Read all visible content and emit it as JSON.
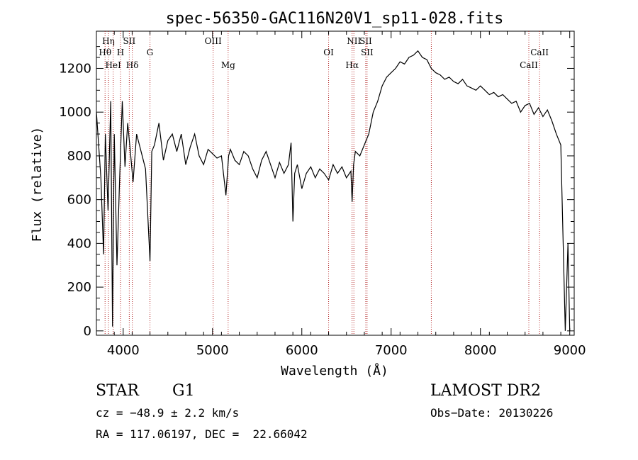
{
  "chart_data": {
    "type": "line",
    "title": "spec-56350-GAC116N20V1_sp11-028.fits",
    "xlabel": "Wavelength (Å)",
    "ylabel": "Flux (relative)",
    "xlim": [
      3700,
      9050
    ],
    "ylim": [
      -20,
      1370
    ],
    "xticks": [
      4000,
      5000,
      6000,
      7000,
      8000,
      9000
    ],
    "yticks": [
      0,
      200,
      400,
      600,
      800,
      1000,
      1200
    ],
    "grid": false,
    "line_color": "#000000",
    "marker_color": "#b22222",
    "series": [
      {
        "x": [
          3700,
          3750,
          3780,
          3800,
          3830,
          3860,
          3880,
          3900,
          3930,
          3960,
          3990,
          4020,
          4050,
          4080,
          4110,
          4150,
          4200,
          4250,
          4300,
          4320,
          4350,
          4400,
          4450,
          4500,
          4550,
          4600,
          4650,
          4700,
          4750,
          4800,
          4850,
          4900,
          4950,
          5000,
          5050,
          5100,
          5150,
          5180,
          5200,
          5250,
          5300,
          5350,
          5400,
          5450,
          5500,
          5550,
          5600,
          5650,
          5700,
          5750,
          5800,
          5850,
          5880,
          5900,
          5920,
          5950,
          6000,
          6050,
          6100,
          6150,
          6200,
          6250,
          6300,
          6350,
          6400,
          6450,
          6500,
          6550,
          6563,
          6580,
          6600,
          6650,
          6700,
          6750,
          6800,
          6850,
          6900,
          6950,
          7000,
          7050,
          7100,
          7150,
          7200,
          7250,
          7300,
          7350,
          7400,
          7450,
          7500,
          7550,
          7600,
          7650,
          7700,
          7750,
          7800,
          7850,
          7900,
          7950,
          8000,
          8050,
          8100,
          8150,
          8200,
          8250,
          8300,
          8350,
          8400,
          8450,
          8500,
          8550,
          8600,
          8650,
          8700,
          8750,
          8800,
          8850,
          8900,
          8950,
          8980,
          9000
        ],
        "y": [
          1000,
          700,
          350,
          900,
          550,
          1050,
          20,
          900,
          300,
          700,
          1050,
          750,
          950,
          820,
          680,
          900,
          820,
          740,
          320,
          820,
          850,
          950,
          780,
          870,
          900,
          820,
          900,
          760,
          840,
          900,
          800,
          760,
          830,
          810,
          790,
          800,
          620,
          800,
          830,
          780,
          760,
          820,
          800,
          740,
          700,
          780,
          820,
          760,
          700,
          770,
          720,
          760,
          860,
          500,
          720,
          760,
          650,
          720,
          750,
          700,
          740,
          720,
          690,
          760,
          720,
          750,
          700,
          730,
          590,
          760,
          820,
          800,
          850,
          900,
          1000,
          1050,
          1120,
          1160,
          1180,
          1200,
          1230,
          1220,
          1250,
          1260,
          1280,
          1250,
          1240,
          1200,
          1180,
          1170,
          1150,
          1160,
          1140,
          1130,
          1150,
          1120,
          1110,
          1100,
          1120,
          1100,
          1080,
          1090,
          1070,
          1080,
          1060,
          1040,
          1050,
          1000,
          1030,
          1040,
          990,
          1020,
          980,
          1010,
          960,
          900,
          850,
          0,
          400,
          0
        ]
      }
    ],
    "markers": [
      {
        "name": "Hη",
        "x": 3835,
        "row": 1
      },
      {
        "name": "Hθ",
        "x": 3797,
        "row": 2
      },
      {
        "name": "HeI",
        "x": 3888,
        "row": 3
      },
      {
        "name": "SII",
        "x": 4068,
        "row": 1
      },
      {
        "name": "H",
        "x": 3970,
        "row": 2
      },
      {
        "name": "Hδ",
        "x": 4102,
        "row": 3
      },
      {
        "name": "G",
        "x": 4300,
        "row": 2
      },
      {
        "name": "OIII",
        "x": 5007,
        "row": 1
      },
      {
        "name": "Mg",
        "x": 5175,
        "row": 3
      },
      {
        "name": "OI",
        "x": 6300,
        "row": 2
      },
      {
        "name": "NII",
        "x": 6583,
        "row": 1
      },
      {
        "name": "Hα",
        "x": 6563,
        "row": 3
      },
      {
        "name": "SII",
        "x": 6716,
        "row": 1
      },
      {
        "name": "SII",
        "x": 6731,
        "row": 2
      },
      {
        "name": "CaII",
        "x": 8662,
        "row": 2
      },
      {
        "name": "CaII",
        "x": 8542,
        "row": 3
      },
      {
        "name": "",
        "x": 7450,
        "row": 0
      }
    ]
  },
  "info": {
    "class": "STAR",
    "subclass": "G1",
    "survey": "LAMOST DR2",
    "cz": "cz = −48.9 ± 2.2 km/s",
    "obs_date": "Obs−Date: 20130226",
    "radec": "RA = 117.06197, DEC =  22.66042"
  }
}
